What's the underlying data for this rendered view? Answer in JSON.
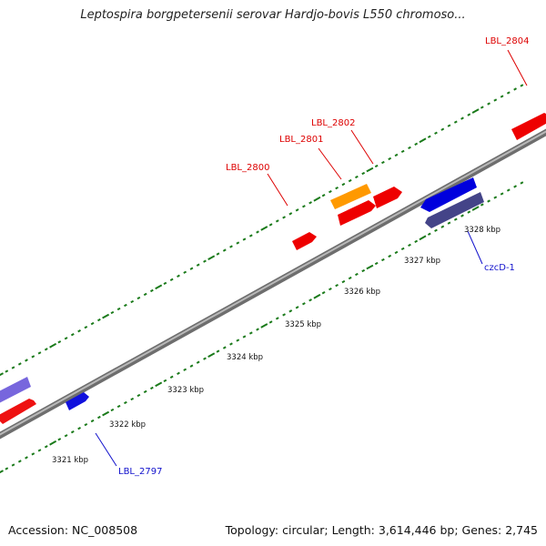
{
  "header": {
    "title": "Leptospira borgpetersenii serovar Hardjo-bovis L550 chromoso..."
  },
  "footer": {
    "accession": "Accession: NC_008508",
    "summary": "Topology: circular; Length: 3,614,446 bp; Genes: 2,745"
  },
  "colors": {
    "backbone": "#8a8a8a",
    "tick": "#1a7a1a",
    "forward_label": "#dd0000",
    "reverse_label": "#1111cc"
  },
  "kbp_labels": [
    "3321 kbp",
    "3322 kbp",
    "3323 kbp",
    "3324 kbp",
    "3325 kbp",
    "3326 kbp",
    "3327 kbp",
    "3328 kbp"
  ],
  "genes": [
    {
      "label": "LBL_2797",
      "strand": "reverse",
      "color": "#1111dd"
    },
    {
      "label": "LBL_2800",
      "strand": "forward",
      "color": "#ee0000"
    },
    {
      "label": "LBL_2801",
      "strand": "forward",
      "color": "#ee0000"
    },
    {
      "label": "LBL_2802",
      "strand": "forward",
      "color": "#ee0000"
    },
    {
      "label": "LBL_2804",
      "strand": "forward",
      "color": "#ee0000"
    },
    {
      "label": "czcD-1",
      "strand": "reverse",
      "color": "#2222dd"
    }
  ]
}
